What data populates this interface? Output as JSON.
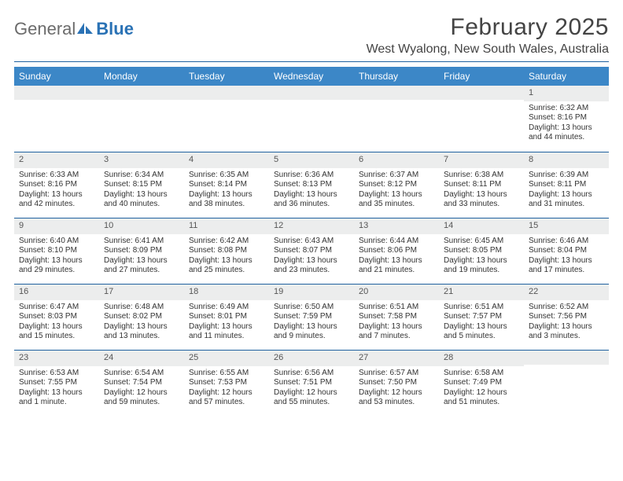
{
  "logo": {
    "general": "General",
    "blue": "Blue"
  },
  "title": "February 2025",
  "location": "West Wyalong, New South Wales, Australia",
  "colors": {
    "header_bar": "#3c87c7",
    "rule": "#1f61a0",
    "daynum_bg": "#eceded",
    "logo_gray": "#6b6b6b",
    "logo_blue": "#2a72b5"
  },
  "days_of_week": [
    "Sunday",
    "Monday",
    "Tuesday",
    "Wednesday",
    "Thursday",
    "Friday",
    "Saturday"
  ],
  "weeks": [
    [
      {
        "n": "",
        "t": ""
      },
      {
        "n": "",
        "t": ""
      },
      {
        "n": "",
        "t": ""
      },
      {
        "n": "",
        "t": ""
      },
      {
        "n": "",
        "t": ""
      },
      {
        "n": "",
        "t": ""
      },
      {
        "n": "1",
        "t": "Sunrise: 6:32 AM\nSunset: 8:16 PM\nDaylight: 13 hours and 44 minutes."
      }
    ],
    [
      {
        "n": "2",
        "t": "Sunrise: 6:33 AM\nSunset: 8:16 PM\nDaylight: 13 hours and 42 minutes."
      },
      {
        "n": "3",
        "t": "Sunrise: 6:34 AM\nSunset: 8:15 PM\nDaylight: 13 hours and 40 minutes."
      },
      {
        "n": "4",
        "t": "Sunrise: 6:35 AM\nSunset: 8:14 PM\nDaylight: 13 hours and 38 minutes."
      },
      {
        "n": "5",
        "t": "Sunrise: 6:36 AM\nSunset: 8:13 PM\nDaylight: 13 hours and 36 minutes."
      },
      {
        "n": "6",
        "t": "Sunrise: 6:37 AM\nSunset: 8:12 PM\nDaylight: 13 hours and 35 minutes."
      },
      {
        "n": "7",
        "t": "Sunrise: 6:38 AM\nSunset: 8:11 PM\nDaylight: 13 hours and 33 minutes."
      },
      {
        "n": "8",
        "t": "Sunrise: 6:39 AM\nSunset: 8:11 PM\nDaylight: 13 hours and 31 minutes."
      }
    ],
    [
      {
        "n": "9",
        "t": "Sunrise: 6:40 AM\nSunset: 8:10 PM\nDaylight: 13 hours and 29 minutes."
      },
      {
        "n": "10",
        "t": "Sunrise: 6:41 AM\nSunset: 8:09 PM\nDaylight: 13 hours and 27 minutes."
      },
      {
        "n": "11",
        "t": "Sunrise: 6:42 AM\nSunset: 8:08 PM\nDaylight: 13 hours and 25 minutes."
      },
      {
        "n": "12",
        "t": "Sunrise: 6:43 AM\nSunset: 8:07 PM\nDaylight: 13 hours and 23 minutes."
      },
      {
        "n": "13",
        "t": "Sunrise: 6:44 AM\nSunset: 8:06 PM\nDaylight: 13 hours and 21 minutes."
      },
      {
        "n": "14",
        "t": "Sunrise: 6:45 AM\nSunset: 8:05 PM\nDaylight: 13 hours and 19 minutes."
      },
      {
        "n": "15",
        "t": "Sunrise: 6:46 AM\nSunset: 8:04 PM\nDaylight: 13 hours and 17 minutes."
      }
    ],
    [
      {
        "n": "16",
        "t": "Sunrise: 6:47 AM\nSunset: 8:03 PM\nDaylight: 13 hours and 15 minutes."
      },
      {
        "n": "17",
        "t": "Sunrise: 6:48 AM\nSunset: 8:02 PM\nDaylight: 13 hours and 13 minutes."
      },
      {
        "n": "18",
        "t": "Sunrise: 6:49 AM\nSunset: 8:01 PM\nDaylight: 13 hours and 11 minutes."
      },
      {
        "n": "19",
        "t": "Sunrise: 6:50 AM\nSunset: 7:59 PM\nDaylight: 13 hours and 9 minutes."
      },
      {
        "n": "20",
        "t": "Sunrise: 6:51 AM\nSunset: 7:58 PM\nDaylight: 13 hours and 7 minutes."
      },
      {
        "n": "21",
        "t": "Sunrise: 6:51 AM\nSunset: 7:57 PM\nDaylight: 13 hours and 5 minutes."
      },
      {
        "n": "22",
        "t": "Sunrise: 6:52 AM\nSunset: 7:56 PM\nDaylight: 13 hours and 3 minutes."
      }
    ],
    [
      {
        "n": "23",
        "t": "Sunrise: 6:53 AM\nSunset: 7:55 PM\nDaylight: 13 hours and 1 minute."
      },
      {
        "n": "24",
        "t": "Sunrise: 6:54 AM\nSunset: 7:54 PM\nDaylight: 12 hours and 59 minutes."
      },
      {
        "n": "25",
        "t": "Sunrise: 6:55 AM\nSunset: 7:53 PM\nDaylight: 12 hours and 57 minutes."
      },
      {
        "n": "26",
        "t": "Sunrise: 6:56 AM\nSunset: 7:51 PM\nDaylight: 12 hours and 55 minutes."
      },
      {
        "n": "27",
        "t": "Sunrise: 6:57 AM\nSunset: 7:50 PM\nDaylight: 12 hours and 53 minutes."
      },
      {
        "n": "28",
        "t": "Sunrise: 6:58 AM\nSunset: 7:49 PM\nDaylight: 12 hours and 51 minutes."
      },
      {
        "n": "",
        "t": ""
      }
    ]
  ]
}
